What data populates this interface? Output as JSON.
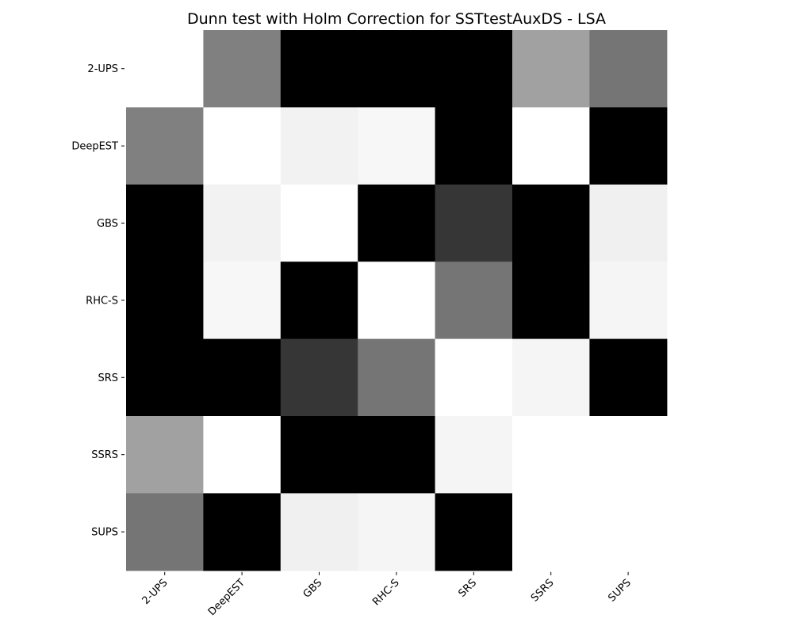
{
  "chart_data": {
    "type": "heatmap",
    "title": "Dunn test with Holm Correction for SSTtestAuxDS - LSA",
    "row_labels": [
      "2-UPS",
      "DeepEST",
      "GBS",
      "RHC-S",
      "SRS",
      "SSRS",
      "SUPS"
    ],
    "col_labels": [
      "2-UPS",
      "DeepEST",
      "GBS",
      "RHC-S",
      "SRS",
      "SSRS",
      "SUPS"
    ],
    "colormap": "grayscale",
    "colorbar": false,
    "grid": false,
    "values": [
      [
        1.0,
        0.5,
        0.0,
        0.0,
        0.0,
        0.63,
        0.46
      ],
      [
        0.5,
        1.0,
        0.95,
        0.97,
        0.0,
        1.0,
        0.0
      ],
      [
        0.0,
        0.95,
        1.0,
        0.0,
        0.21,
        0.0,
        0.94
      ],
      [
        0.0,
        0.97,
        0.0,
        1.0,
        0.46,
        0.0,
        0.96
      ],
      [
        0.0,
        0.0,
        0.21,
        0.46,
        1.0,
        0.96,
        0.0
      ],
      [
        0.63,
        1.0,
        0.0,
        0.0,
        0.96,
        1.0,
        1.0
      ],
      [
        0.46,
        0.0,
        0.94,
        0.96,
        0.0,
        1.0,
        1.0
      ]
    ]
  }
}
